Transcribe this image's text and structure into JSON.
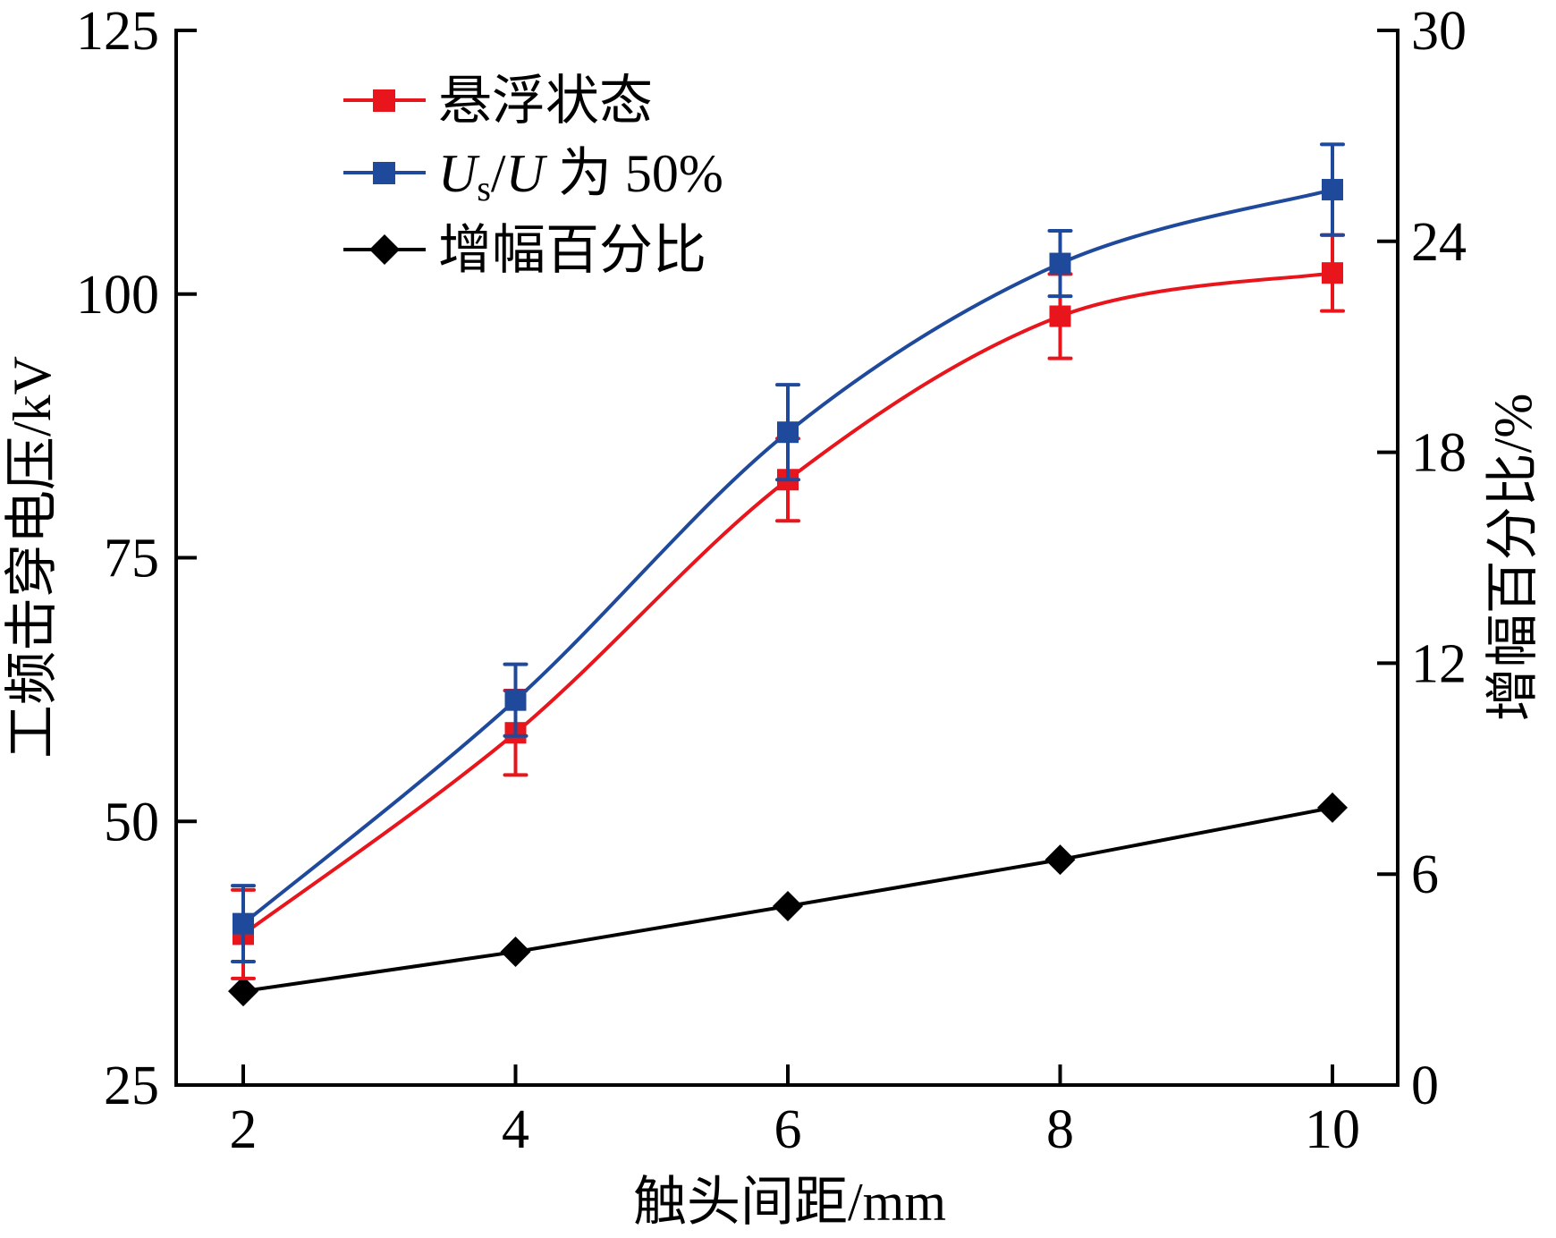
{
  "chart_data": {
    "type": "line",
    "title": "",
    "xlabel": "触头间距/mm",
    "ylabel": "工频击穿电压/kV",
    "y2label": "增幅百分比/%",
    "xlim": [
      1.5,
      10.5
    ],
    "ylim": [
      25,
      125
    ],
    "y2lim": [
      0,
      30
    ],
    "x": [
      2,
      4,
      6,
      8,
      10
    ],
    "xticks": [
      "2",
      "4",
      "6",
      "8",
      "10"
    ],
    "yticks": [
      "25",
      "50",
      "75",
      "100",
      "125"
    ],
    "y2ticks": [
      "0",
      "6",
      "12",
      "18",
      "24",
      "30"
    ],
    "grid": false,
    "legend_position": "top-left",
    "series": [
      {
        "name": "悬浮状态",
        "axis": "left",
        "color": "#e8161c",
        "marker": "square",
        "smooth": true,
        "values": [
          39.3,
          58.4,
          82.4,
          97.9,
          102.0
        ],
        "error": [
          4.2,
          4.0,
          3.9,
          4.0,
          3.6
        ]
      },
      {
        "name": "Us/U 为 50%",
        "legend_label": {
          "main": "U",
          "sub": "s",
          "rest1": "/",
          "italic2": "U",
          "rest2": " 为 50%"
        },
        "axis": "left",
        "color": "#1f4a9c",
        "marker": "square",
        "smooth": true,
        "values": [
          40.3,
          61.5,
          86.9,
          102.9,
          109.9
        ],
        "error": [
          3.6,
          3.4,
          4.5,
          3.1,
          4.3
        ]
      },
      {
        "name": "增幅百分比",
        "axis": "right",
        "color": "#000000",
        "marker": "diamond",
        "smooth": false,
        "values": [
          2.67,
          3.79,
          5.09,
          6.41,
          7.89
        ]
      }
    ]
  }
}
